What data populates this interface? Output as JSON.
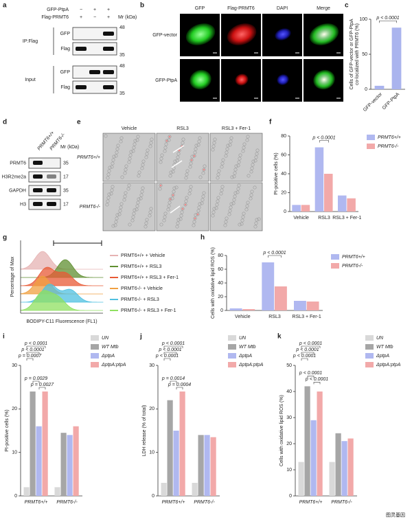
{
  "letters": [
    "a",
    "b",
    "c",
    "d",
    "e",
    "f",
    "g",
    "h",
    "i",
    "j",
    "k"
  ],
  "panel_a": {
    "rows": [
      "GFP-PtpA",
      "Flag-PRMT6"
    ],
    "signs": [
      [
        "−",
        "+",
        "+"
      ],
      [
        "+",
        "−",
        "+"
      ]
    ],
    "mr": "Mr (kDa)",
    "groups": [
      "IP:Flag",
      "Input"
    ],
    "bands": [
      "GFP",
      "Flag",
      "GFP",
      "Flag"
    ],
    "markers": [
      "48",
      "35",
      "48",
      "35"
    ]
  },
  "panel_b": {
    "columns": [
      "GFP",
      "Flag-PRMT6",
      "DAPI",
      "Merge"
    ],
    "rows": [
      "GFP-vector",
      "GFP-PtpA"
    ]
  },
  "panel_d": {
    "columns": [
      "PRMT6+/+",
      "PRMT6-/-"
    ],
    "mr": "Mr (kDa)",
    "bands": [
      "PRMT6",
      "H3R2me2a",
      "GAPDH",
      "H3"
    ],
    "markers": [
      "35",
      "17",
      "35",
      "17"
    ]
  },
  "panel_e": {
    "columns": [
      "Vehicle",
      "RSL3",
      "RSL3 + Fer-1"
    ],
    "rows": [
      "PRMT6+/+",
      "PRMT6-/-"
    ]
  },
  "panel_g": {
    "ylabel": "Percentage of Max",
    "xlabel": "BODIPY-C11 Fluorescence (FL1)",
    "legend": [
      "PRMT6+/+ + Vehicle",
      "PRMT6+/+ + RSL3",
      "PRMT6+/+ + RSL3 + Fer-1",
      "PRMT6-/- + Vehicle",
      "PRMT6-/- + RSL3",
      "PRMT6-/- + RSL3 + Fer-1"
    ]
  },
  "watermark": "图灵基因",
  "chart_data": [
    {
      "type": "bar",
      "ylabel": [
        "Cells of GFP-vector or GFP-PtpA",
        "co-localized with PRMT6 (%)"
      ],
      "categories": [
        "GFP-vector",
        "GFP-PtpA"
      ],
      "values": [
        5,
        88
      ],
      "color": "#aab4ee",
      "ylim": [
        0,
        100
      ],
      "yticks": [
        0,
        50,
        100
      ],
      "annotations": [
        "p < 0.0001"
      ]
    },
    {
      "type": "bar",
      "ylabel": [
        "PI-positive cells (%)"
      ],
      "categories": [
        "Vehicle",
        "RSL3",
        "RSL3 + Fer-1"
      ],
      "series": [
        {
          "name": "PRMT6+/+",
          "color": "#b0b8f0",
          "values": [
            7,
            68,
            17
          ]
        },
        {
          "name": "PRMT6-/-",
          "color": "#f2a9a9",
          "values": [
            7,
            40,
            14
          ]
        }
      ],
      "ylim": [
        0,
        80
      ],
      "yticks": [
        0,
        20,
        40,
        60,
        80
      ],
      "annotations": [
        "p < 0.0001"
      ],
      "legend": "right"
    },
    {
      "type": "bar",
      "ylabel": [
        "Cells with oxidative lipid ROS (%)"
      ],
      "categories": [
        "Vehicle",
        "RSL3",
        "RSL3 + Fer-1"
      ],
      "series": [
        {
          "name": "PRMT6+/+",
          "color": "#b0b8f0",
          "values": [
            3,
            70,
            14
          ]
        },
        {
          "name": "PRMT6-/-",
          "color": "#f2a9a9",
          "values": [
            2,
            35,
            13
          ]
        }
      ],
      "ylim": [
        0,
        80
      ],
      "yticks": [
        0,
        20,
        40,
        60,
        80
      ],
      "annotations": [
        "p < 0.0001"
      ],
      "legend": "right"
    },
    {
      "type": "bar",
      "ylabel": [
        "PI-positive cells (%)"
      ],
      "categories": [
        "PRMT6+/+",
        "PRMT6-/-"
      ],
      "series": [
        {
          "name": "UN",
          "color": "#d9d9d9",
          "values": [
            2,
            2
          ]
        },
        {
          "name": "WT Mtb",
          "color": "#a6a6a6",
          "values": [
            24,
            14.5
          ]
        },
        {
          "name": "ΔptpA",
          "color": "#b0b8f0",
          "values": [
            16,
            14
          ]
        },
        {
          "name": "ΔptpA:ptpA",
          "color": "#f2a9a9",
          "values": [
            24,
            16
          ]
        }
      ],
      "ylim": [
        0,
        30
      ],
      "yticks": [
        0,
        10,
        20,
        30
      ],
      "annotations": [
        "p < 0.0001",
        "p < 0.0001",
        "p = 0.0007",
        "p = 0.0029",
        "p = 0.0027"
      ],
      "legend": "right"
    },
    {
      "type": "bar",
      "ylabel": [
        "LDH release (% of total)"
      ],
      "categories": [
        "PRMT6+/+",
        "PRMT6-/-"
      ],
      "series": [
        {
          "name": "UN",
          "color": "#d9d9d9",
          "values": [
            3,
            3
          ]
        },
        {
          "name": "WT Mtb",
          "color": "#a6a6a6",
          "values": [
            22,
            14
          ]
        },
        {
          "name": "ΔptpA",
          "color": "#b0b8f0",
          "values": [
            15,
            14
          ]
        },
        {
          "name": "ΔptpA:ptpA",
          "color": "#f2a9a9",
          "values": [
            24,
            13.5
          ]
        }
      ],
      "ylim": [
        0,
        30
      ],
      "yticks": [
        0,
        10,
        20,
        30
      ],
      "annotations": [
        "p < 0.0001",
        "p < 0.0001",
        "p < 0.0001",
        "p = 0.0014",
        "p = 0.0004"
      ],
      "legend": "right"
    },
    {
      "type": "bar",
      "ylabel": [
        "Cells with oxidative lipid ROS (%)"
      ],
      "categories": [
        "PRMT6+/+",
        "PRMT6-/-"
      ],
      "series": [
        {
          "name": "UN",
          "color": "#d9d9d9",
          "values": [
            13,
            13
          ]
        },
        {
          "name": "WT Mtb",
          "color": "#a6a6a6",
          "values": [
            42,
            24
          ]
        },
        {
          "name": "ΔptpA",
          "color": "#b0b8f0",
          "values": [
            29,
            21
          ]
        },
        {
          "name": "ΔptpA:ptpA",
          "color": "#f2a9a9",
          "values": [
            40,
            22
          ]
        }
      ],
      "ylim": [
        0,
        50
      ],
      "yticks": [
        0,
        10,
        20,
        30,
        40,
        50
      ],
      "annotations": [
        "p < 0.0001",
        "p < 0.0001",
        "p < 0.0001",
        "p < 0.0001",
        "p < 0.0001"
      ],
      "legend": "right"
    }
  ]
}
